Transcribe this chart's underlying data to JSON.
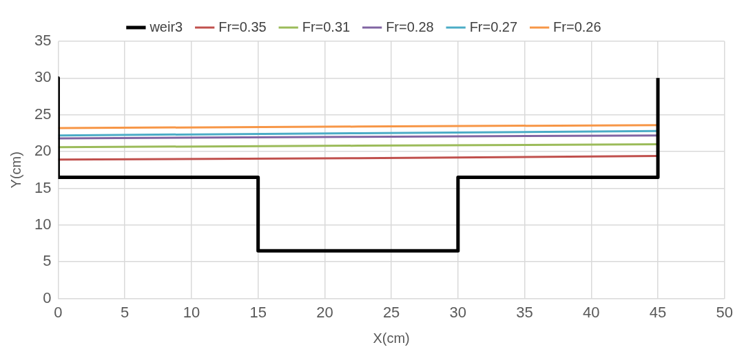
{
  "chart_data": {
    "type": "line",
    "xlabel": "X(cm)",
    "ylabel": "Y(cm)",
    "xlim": [
      0,
      50
    ],
    "xticks": [
      0,
      5,
      10,
      15,
      20,
      25,
      30,
      35,
      40,
      45,
      50
    ],
    "ylim": [
      0,
      35
    ],
    "yticks": [
      0,
      5,
      10,
      15,
      20,
      25,
      30,
      35
    ],
    "grid": true,
    "legend": "top",
    "marker": "none",
    "line_style": "solid",
    "series": [
      {
        "name": "weir3",
        "color": "#000000",
        "x": [
          0,
          0,
          15,
          15,
          30,
          30,
          45,
          45
        ],
        "values": [
          30,
          16.5,
          16.5,
          6.5,
          6.5,
          16.5,
          16.5,
          30
        ]
      },
      {
        "name": "Fr=0.35",
        "color": "#c0504d",
        "x": [
          0,
          22.5,
          45
        ],
        "values": [
          18.9,
          19.1,
          19.4
        ]
      },
      {
        "name": "Fr=0.31",
        "color": "#9bbb59",
        "x": [
          0,
          22.5,
          45
        ],
        "values": [
          20.6,
          20.8,
          21.0
        ]
      },
      {
        "name": "Fr=0.28",
        "color": "#8064a2",
        "x": [
          0,
          22.5,
          45
        ],
        "values": [
          21.8,
          22.0,
          22.2
        ]
      },
      {
        "name": "Fr=0.27",
        "color": "#4bacc6",
        "x": [
          0,
          22.5,
          45
        ],
        "values": [
          22.2,
          22.5,
          22.8
        ]
      },
      {
        "name": "Fr=0.26",
        "color": "#f79646",
        "x": [
          0,
          22.5,
          45
        ],
        "values": [
          23.2,
          23.4,
          23.6
        ]
      }
    ]
  }
}
